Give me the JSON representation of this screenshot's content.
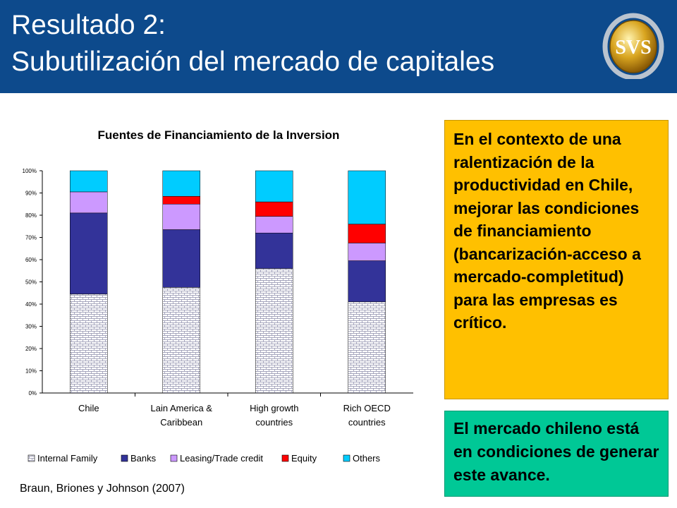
{
  "header": {
    "title_line1": "Resultado 2:",
    "title_line2": "Subutilización del mercado de capitales",
    "logo_text": "SVS",
    "background_color": "#0d4a8c"
  },
  "chart_data": {
    "type": "bar",
    "stacked": true,
    "title": "Fuentes de Financiamiento de la Inversion",
    "categories": [
      [
        "Chile"
      ],
      [
        "Lain America &",
        "Caribbean"
      ],
      [
        "High growth",
        "countries"
      ],
      [
        "Rich OECD",
        "countries"
      ]
    ],
    "y_ticks": [
      "0%",
      "10%",
      "20%",
      "30%",
      "40%",
      "50%",
      "60%",
      "70%",
      "80%",
      "90%",
      "100%"
    ],
    "ylim": [
      0,
      100
    ],
    "y_unit": "%",
    "grid": false,
    "legend_position": "bottom",
    "series": [
      {
        "name": "Internal Family",
        "color": "#ffffff",
        "pattern": "brick",
        "values": [
          44.5,
          47.5,
          56,
          41
        ]
      },
      {
        "name": "Banks",
        "color": "#333399",
        "values": [
          36.5,
          26,
          16,
          18.5
        ]
      },
      {
        "name": "Leasing/Trade credit",
        "color": "#cc99ff",
        "values": [
          9.5,
          11.5,
          7.5,
          8
        ]
      },
      {
        "name": "Equity",
        "color": "#ff0000",
        "values": [
          0,
          3.5,
          6.5,
          8.5
        ]
      },
      {
        "name": "Others",
        "color": "#00ccff",
        "values": [
          9.5,
          11.5,
          14,
          24
        ]
      }
    ]
  },
  "right_panel": {
    "main_text": "En el contexto de una ralentización de la productividad en Chile, mejorar las condiciones de financiamiento (bancarización-acceso a mercado-completitud) para las empresas es crítico.",
    "secondary_text": "El mercado chileno está en condiciones de generar este avance.",
    "main_color": "#ffc000",
    "secondary_color": "#00c896"
  },
  "citation": "Braun, Briones y Johnson (2007)"
}
